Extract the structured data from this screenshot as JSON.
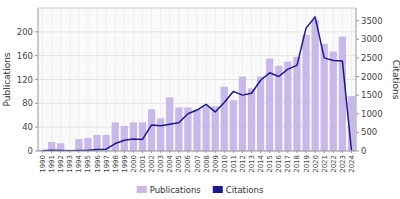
{
  "chart_data": {
    "type": "bar",
    "categories": [
      "1990",
      "1991",
      "1992",
      "1993",
      "1994",
      "1995",
      "1996",
      "1997",
      "1998",
      "1999",
      "2000",
      "2001",
      "2002",
      "2003",
      "2004",
      "2005",
      "2006",
      "2007",
      "2008",
      "2009",
      "2010",
      "2011",
      "2012",
      "2013",
      "2014",
      "2015",
      "2016",
      "2017",
      "2018",
      "2019",
      "2020",
      "2021",
      "2022",
      "2023",
      "2024"
    ],
    "series": [
      {
        "name": "Publications",
        "type": "bar",
        "color": "#c9b8ea",
        "values": [
          2,
          15,
          13,
          2,
          20,
          22,
          27,
          27,
          48,
          42,
          48,
          48,
          70,
          55,
          90,
          73,
          73,
          70,
          75,
          75,
          108,
          85,
          125,
          105,
          125,
          155,
          143,
          150,
          158,
          195,
          220,
          180,
          167,
          192,
          92
        ]
      },
      {
        "name": "Citations",
        "type": "line",
        "color": "#1a1a8c",
        "axis": "y2",
        "values": [
          10,
          20,
          15,
          10,
          15,
          20,
          40,
          50,
          200,
          290,
          320,
          310,
          700,
          680,
          720,
          760,
          1000,
          1100,
          1250,
          1050,
          1300,
          1600,
          1500,
          1550,
          1900,
          2100,
          2000,
          2200,
          2300,
          3300,
          3600,
          2500,
          2430,
          2420,
          20
        ]
      }
    ],
    "ylabel": "Publications",
    "y2label": "Citations",
    "ylim": [
      0,
      240
    ],
    "yticks": [
      0,
      40,
      80,
      120,
      160,
      200
    ],
    "y2lim": [
      0,
      3840
    ],
    "y2ticks": [
      0,
      500,
      1000,
      1500,
      2000,
      2500,
      3000,
      3500
    ],
    "grid": true,
    "legend": "bottom"
  }
}
